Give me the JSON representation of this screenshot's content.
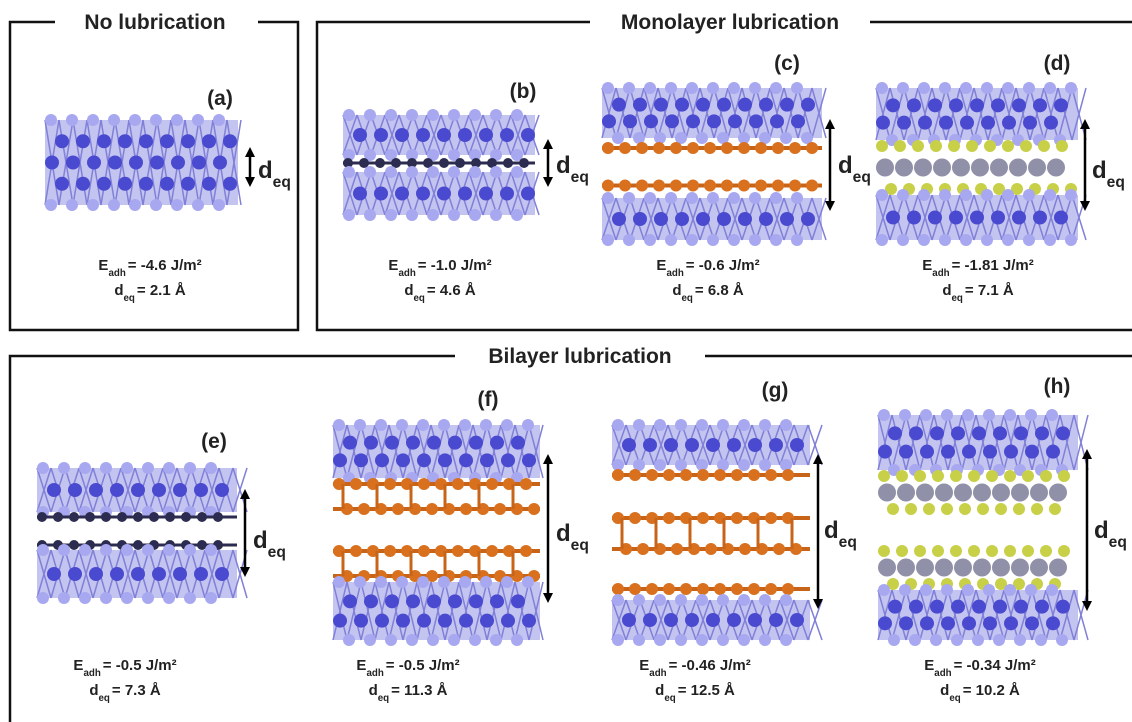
{
  "groups": {
    "none": "No lubrication",
    "mono": "Monolayer lubrication",
    "bi": "Bilayer lubrication"
  },
  "symbols": {
    "energy": "E",
    "energy_sub": "adh",
    "distance": "d",
    "distance_sub": "eq"
  },
  "panels": [
    {
      "label": "(a)",
      "energy": "= -4.6 J/m²",
      "distance": "= 2.1 Å"
    },
    {
      "label": "(b)",
      "energy": "= -1.0 J/m²",
      "distance": "= 4.6 Å"
    },
    {
      "label": "(c)",
      "energy": "= -0.6 J/m²",
      "distance": "= 6.8 Å"
    },
    {
      "label": "(d)",
      "energy": "= -1.81 J/m²",
      "distance": "= 7.1 Å"
    },
    {
      "label": "(e)",
      "energy": "= -0.5 J/m²",
      "distance": "= 7.3 Å"
    },
    {
      "label": "(f)",
      "energy": "= -0.5 J/m²",
      "distance": "= 11.3 Å"
    },
    {
      "label": "(g)",
      "energy": "= -0.46 J/m²",
      "distance": "= 12.5 Å"
    },
    {
      "label": "(h)",
      "energy": "= -0.34 J/m²",
      "distance": "= 10.2 Å"
    }
  ]
}
